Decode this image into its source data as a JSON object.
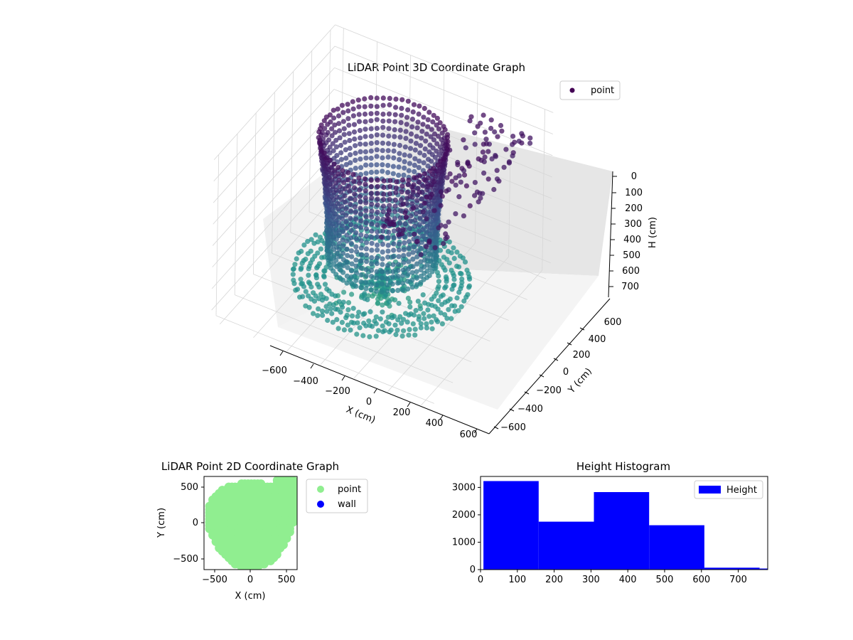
{
  "chart_data": [
    {
      "type": "scatter",
      "title": "LiDAR Point 3D Coordinate Graph",
      "xlabel": "X (cm)",
      "ylabel": "Y (cm)",
      "zlabel": "H (cm)",
      "xticks": [
        "−600",
        "−400",
        "−200",
        "0",
        "200",
        "400",
        "600"
      ],
      "yticks": [
        "−600",
        "−400",
        "−200",
        "0",
        "200",
        "400",
        "600"
      ],
      "zticks": [
        "0",
        "100",
        "200",
        "300",
        "400",
        "500",
        "600",
        "700"
      ],
      "xlim": [
        -650,
        650
      ],
      "ylim": [
        -650,
        650
      ],
      "zlim": [
        0,
        750
      ],
      "z_inverted": true,
      "colormap": "viridis",
      "legend": {
        "placement": "top-right",
        "entries": [
          {
            "name": "point",
            "color": "#440154"
          }
        ]
      },
      "grid": true
    },
    {
      "type": "scatter",
      "title": "LiDAR Point 2D Coordinate Graph",
      "xlabel": "X (cm)",
      "ylabel": "Y (cm)",
      "xticks": [
        "−500",
        "0",
        "500"
      ],
      "yticks": [
        "500",
        "0",
        "−500"
      ],
      "xlim": [
        -650,
        650
      ],
      "ylim": [
        -650,
        650
      ],
      "legend": {
        "placement": "outside-right",
        "entries": [
          {
            "name": "point",
            "color": "#90ee90"
          },
          {
            "name": "wall",
            "color": "#0000ff"
          }
        ]
      }
    },
    {
      "type": "bar",
      "title": "Height Histogram",
      "bins": [
        {
          "x0": 8,
          "x1": 158,
          "count": 3230
        },
        {
          "x0": 158,
          "x1": 308,
          "count": 1750
        },
        {
          "x0": 308,
          "x1": 458,
          "count": 2830
        },
        {
          "x0": 458,
          "x1": 608,
          "count": 1620
        },
        {
          "x0": 608,
          "x1": 758,
          "count": 70
        },
        {
          "x0": 758,
          "x1": 780,
          "count": 40
        }
      ],
      "xticks": [
        "0",
        "100",
        "200",
        "300",
        "400",
        "500",
        "600",
        "700"
      ],
      "yticks": [
        "0",
        "1000",
        "2000",
        "3000"
      ],
      "xlim": [
        0,
        780
      ],
      "ylim": [
        0,
        3400
      ],
      "color": "#0000ff",
      "legend": {
        "placement": "top-right",
        "entries": [
          {
            "name": "Height",
            "color": "#0000ff"
          }
        ]
      }
    }
  ]
}
